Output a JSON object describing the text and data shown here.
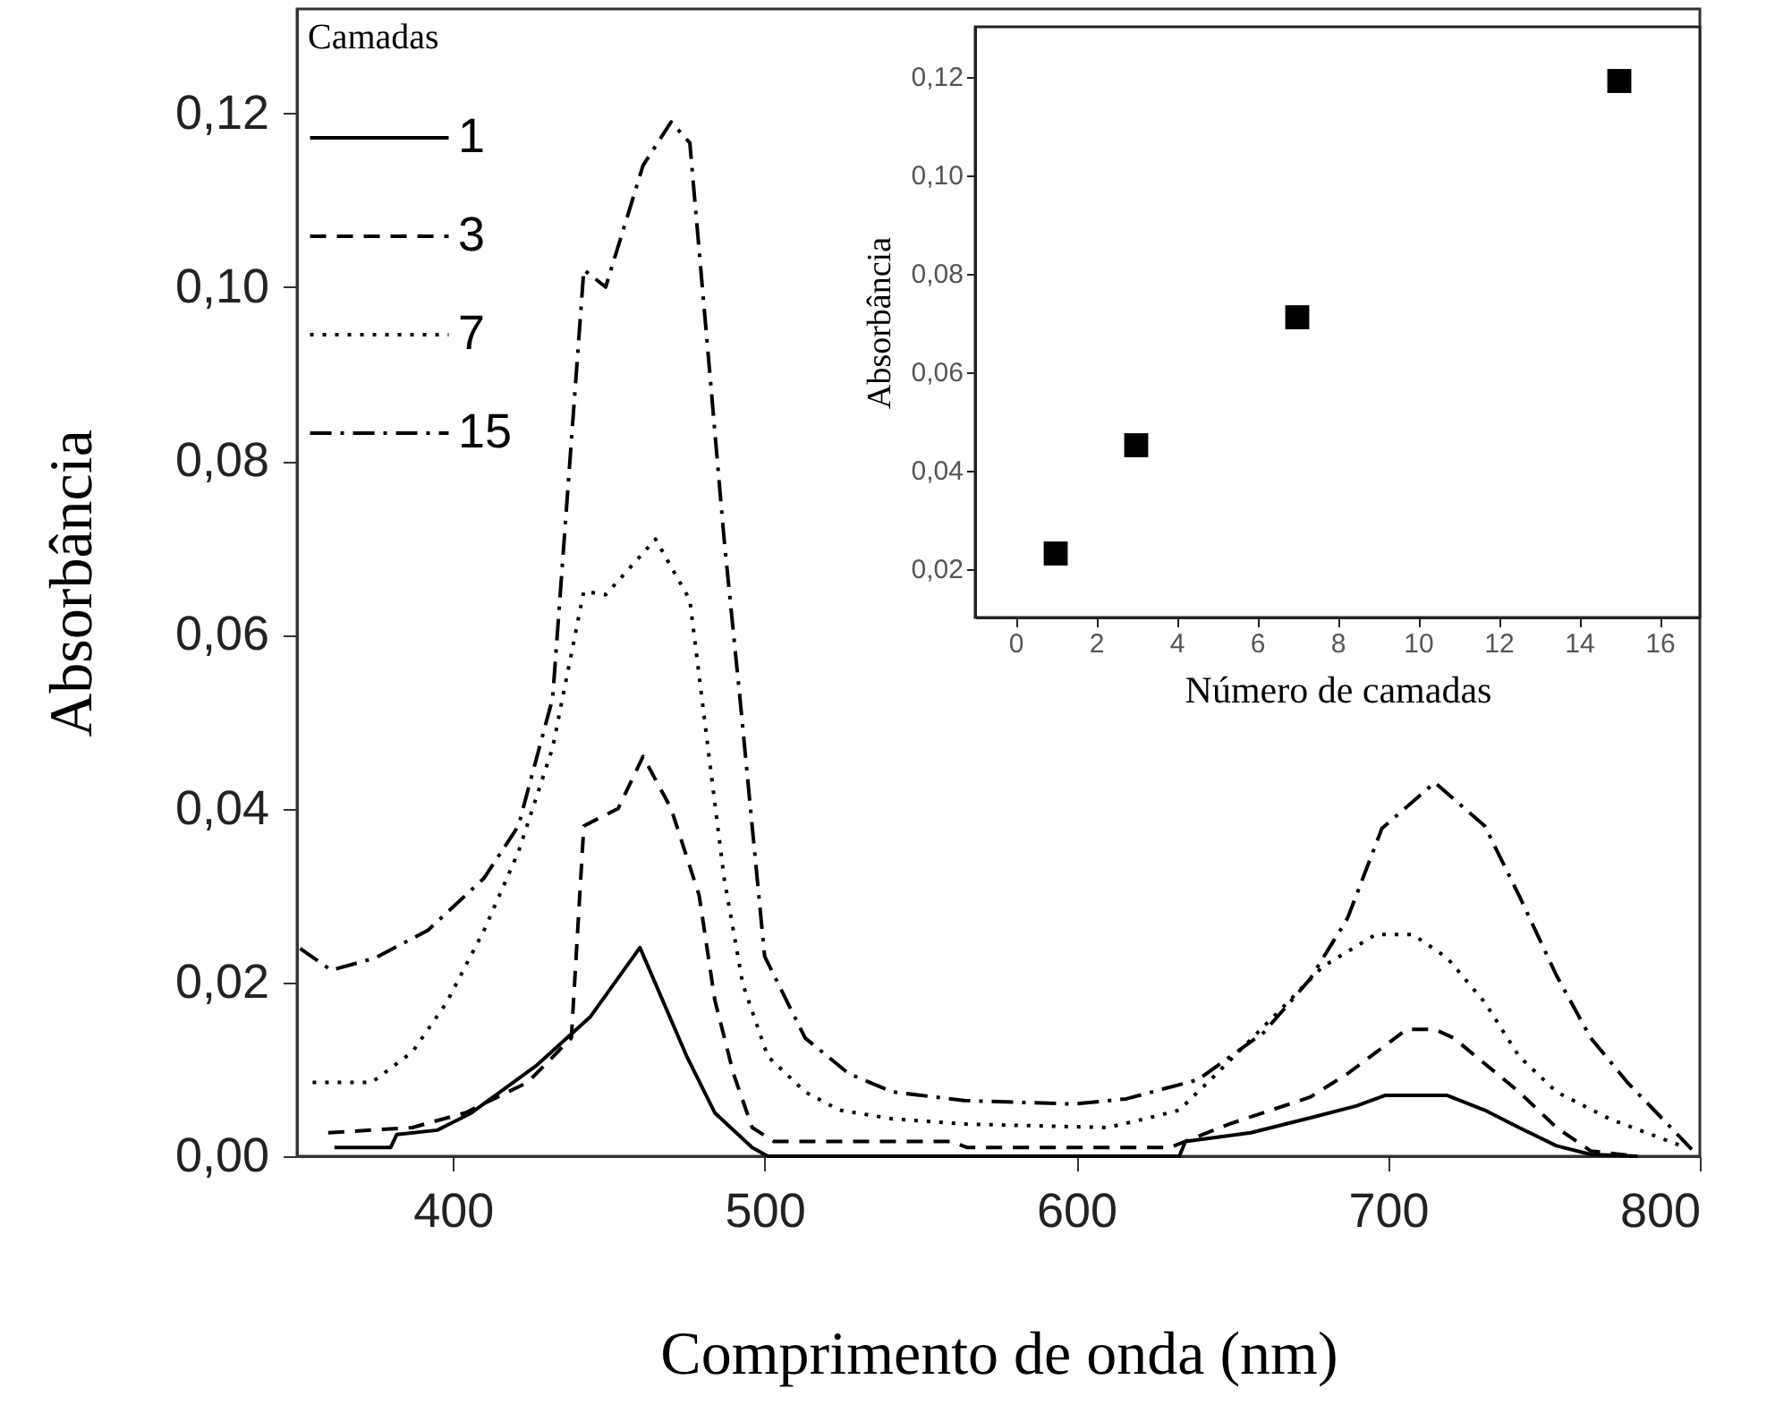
{
  "chart_data": [
    {
      "type": "line",
      "xlabel": "Comprimento de onda (nm)",
      "ylabel": "Absorbância",
      "legend_title": "Camadas",
      "legend": "top left",
      "marker": "none",
      "xlim": [
        350,
        800
      ],
      "xticks": [
        400,
        500,
        600,
        700,
        800
      ],
      "ylim": [
        0,
        0.132
      ],
      "yticks": [
        {
          "value": 0,
          "label": "0,00"
        },
        {
          "value": 0.02,
          "label": "0,02"
        },
        {
          "value": 0.04,
          "label": "0,04"
        },
        {
          "value": 0.06,
          "label": "0,06"
        },
        {
          "value": 0.08,
          "label": "0,08"
        },
        {
          "value": 0.1,
          "label": "0,10"
        },
        {
          "value": 0.12,
          "label": "0,12"
        }
      ],
      "series": [
        {
          "name": "1",
          "color": "#000000",
          "line_style": "solid",
          "x": [
            362,
            380,
            382,
            395,
            406,
            427,
            444,
            460,
            475,
            484,
            496,
            501,
            560,
            633,
            635,
            656,
            676,
            690,
            699,
            719,
            731,
            742,
            754,
            765,
            780
          ],
          "values": [
            0.001,
            0.001,
            0.0025,
            0.003,
            0.005,
            0.0105,
            0.016,
            0.024,
            0.0115,
            0.005,
            0.001,
            0,
            0,
            0,
            0.0017,
            0.0027,
            0.0045,
            0.0058,
            0.007,
            0.007,
            0.0053,
            0.0033,
            0.0012,
            0.0002,
            0
          ]
        },
        {
          "name": "3",
          "color": "#000000",
          "line_style": "dashed",
          "x": [
            360,
            387,
            404,
            424,
            438,
            442,
            453,
            461,
            470,
            479,
            484,
            490,
            496,
            503,
            560,
            565,
            630,
            649,
            675,
            687,
            706,
            715,
            721,
            742,
            754,
            765,
            780
          ],
          "values": [
            0.0027,
            0.0033,
            0.005,
            0.0085,
            0.0136,
            0.038,
            0.04,
            0.046,
            0.04,
            0.03,
            0.018,
            0.0095,
            0.0033,
            0.0017,
            0.0017,
            0.001,
            0.001,
            0.0037,
            0.0068,
            0.0095,
            0.0146,
            0.0146,
            0.0136,
            0.0074,
            0.0033,
            0.0006,
            0
          ]
        },
        {
          "name": "7",
          "color": "#000000",
          "line_style": "dotted",
          "x": [
            355,
            374,
            387,
            398,
            410,
            421,
            432,
            442,
            449,
            465,
            476,
            482,
            487,
            493,
            501,
            513,
            524,
            541,
            564,
            610,
            622,
            633,
            645,
            662,
            679,
            696,
            708,
            719,
            731,
            742,
            754,
            771,
            794
          ],
          "values": [
            0.0085,
            0.0085,
            0.012,
            0.0177,
            0.026,
            0.035,
            0.047,
            0.065,
            0.0646,
            0.071,
            0.064,
            0.0465,
            0.032,
            0.0198,
            0.0115,
            0.0074,
            0.0053,
            0.0043,
            0.0037,
            0.0033,
            0.0043,
            0.0053,
            0.0095,
            0.0156,
            0.0218,
            0.0255,
            0.0255,
            0.0228,
            0.0177,
            0.0115,
            0.0074,
            0.0043,
            0.0012
          ]
        },
        {
          "name": "15",
          "color": "#000000",
          "line_style": "dashdot",
          "x": [
            351,
            361,
            375,
            392,
            410,
            421,
            432,
            442,
            449,
            461,
            470,
            476,
            482,
            487,
            492,
            500,
            513,
            527,
            541,
            564,
            599,
            616,
            639,
            660,
            675,
            687,
            698,
            715,
            731,
            742,
            754,
            765,
            777,
            788,
            799
          ],
          "values": [
            0.0239,
            0.0214,
            0.0228,
            0.026,
            0.032,
            0.038,
            0.0527,
            0.102,
            0.1,
            0.114,
            0.119,
            0.1166,
            0.0918,
            0.071,
            0.053,
            0.023,
            0.0136,
            0.0095,
            0.0074,
            0.0064,
            0.006,
            0.0066,
            0.0088,
            0.0142,
            0.0204,
            0.0274,
            0.0377,
            0.043,
            0.038,
            0.03,
            0.0208,
            0.0136,
            0.0084,
            0.0043,
            0.0002
          ]
        }
      ]
    },
    {
      "type": "scatter",
      "xlabel": "Número de camadas",
      "ylabel": "Absorbância",
      "marker": "square",
      "x": [
        1,
        3,
        7,
        15
      ],
      "values": [
        0.023,
        0.045,
        0.071,
        0.119
      ],
      "color": "#000000",
      "xlim": [
        -1,
        17
      ],
      "xticks": [
        0,
        2,
        4,
        6,
        8,
        10,
        12,
        14,
        16
      ],
      "ylim": [
        0.01,
        0.13
      ],
      "yticks": [
        {
          "value": 0.02,
          "label": "0,02"
        },
        {
          "value": 0.04,
          "label": "0,04"
        },
        {
          "value": 0.06,
          "label": "0,06"
        },
        {
          "value": 0.08,
          "label": "0,08"
        },
        {
          "value": 0.1,
          "label": "0,10"
        },
        {
          "value": 0.12,
          "label": "0,12"
        }
      ]
    }
  ]
}
